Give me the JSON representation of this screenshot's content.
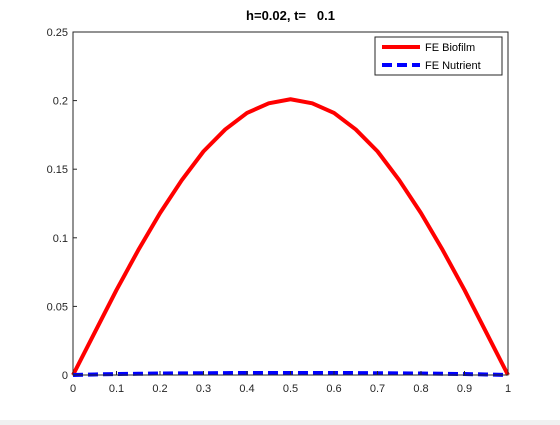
{
  "chart_data": {
    "type": "line",
    "title": "h=0.02, t=   0.1",
    "xlabel": "",
    "ylabel": "",
    "xlim": [
      0,
      1
    ],
    "ylim": [
      0,
      0.25
    ],
    "xticks": [
      0,
      0.1,
      0.2,
      0.3,
      0.4,
      0.5,
      0.6,
      0.7,
      0.8,
      0.9,
      1
    ],
    "xtick_labels": [
      "0",
      "0.1",
      "0.2",
      "0.3",
      "0.4",
      "0.5",
      "0.6",
      "0.7",
      "0.8",
      "0.9",
      "1"
    ],
    "yticks": [
      0,
      0.05,
      0.1,
      0.15,
      0.2,
      0.25
    ],
    "ytick_labels": [
      "0",
      "0.05",
      "0.1",
      "0.15",
      "0.2",
      "0.25"
    ],
    "grid": false,
    "legend_position": "top-right",
    "x": [
      0,
      0.05,
      0.1,
      0.15,
      0.2,
      0.25,
      0.3,
      0.35,
      0.4,
      0.45,
      0.5,
      0.55,
      0.6,
      0.65,
      0.7,
      0.75,
      0.8,
      0.85,
      0.9,
      0.95,
      1
    ],
    "series": [
      {
        "name": "FE Biofilm",
        "color": "#ff0000",
        "style": "solid",
        "values": [
          0,
          0.031,
          0.062,
          0.091,
          0.118,
          0.142,
          0.163,
          0.179,
          0.191,
          0.198,
          0.201,
          0.198,
          0.191,
          0.179,
          0.163,
          0.142,
          0.118,
          0.091,
          0.062,
          0.031,
          0
        ]
      },
      {
        "name": "FE Nutrient",
        "color": "#0000ff",
        "style": "dashed",
        "values": [
          0,
          0.0004,
          0.0007,
          0.0009,
          0.0011,
          0.0012,
          0.0013,
          0.0014,
          0.0015,
          0.0015,
          0.0015,
          0.0015,
          0.0015,
          0.0014,
          0.0013,
          0.0012,
          0.0011,
          0.0009,
          0.0007,
          0.0004,
          0
        ]
      }
    ]
  }
}
